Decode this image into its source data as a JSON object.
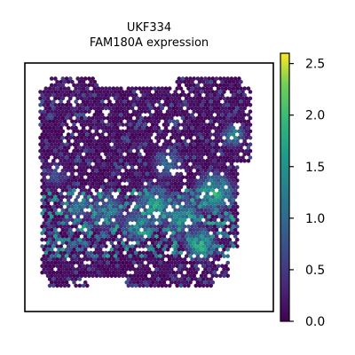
{
  "chart_data": {
    "type": "scatter",
    "title": "UKF334",
    "subtitle": "FAM180A expression",
    "xlabel": "",
    "ylabel": "",
    "colormap": "viridis",
    "colorbar": {
      "range": [
        0.0,
        2.6
      ],
      "ticks": [
        "0.0",
        "0.5",
        "1.0",
        "1.5",
        "2.0",
        "2.5"
      ]
    },
    "grid": false,
    "legend": "none",
    "axes_ticks_shown": false,
    "colors": {
      "frame": "#000000",
      "low": "#440154",
      "mid": "#21918c",
      "high": "#fde725"
    },
    "description_of_spots": "hexagonal spatial transcriptomics spots; mostly low expression (dark purple) with higher expression clusters in the lower-middle band",
    "regions": [
      {
        "name": "tissue-main",
        "shape": "rect",
        "u": [
          0.03,
          0.93
        ],
        "v": [
          0.04,
          0.92
        ]
      },
      {
        "name": "top-right-lobe",
        "shape": "rect",
        "u": [
          0.66,
          0.93
        ],
        "v": [
          0.03,
          0.4
        ]
      }
    ],
    "hotspots": [
      {
        "u": 0.52,
        "v": 0.58,
        "r": 0.05,
        "value": 1.9
      },
      {
        "u": 0.64,
        "v": 0.62,
        "r": 0.05,
        "value": 1.8
      },
      {
        "u": 0.78,
        "v": 0.52,
        "r": 0.05,
        "value": 2.1
      },
      {
        "u": 0.45,
        "v": 0.66,
        "r": 0.04,
        "value": 1.6
      },
      {
        "u": 0.32,
        "v": 0.6,
        "r": 0.05,
        "value": 1.4
      },
      {
        "u": 0.2,
        "v": 0.58,
        "r": 0.04,
        "value": 1.3
      },
      {
        "u": 0.72,
        "v": 0.74,
        "r": 0.04,
        "value": 2.2
      },
      {
        "u": 0.86,
        "v": 0.28,
        "r": 0.03,
        "value": 1.7
      },
      {
        "u": 0.58,
        "v": 0.4,
        "r": 0.04,
        "value": 1.2
      },
      {
        "u": 0.1,
        "v": 0.45,
        "r": 0.03,
        "value": 1.0
      }
    ]
  }
}
